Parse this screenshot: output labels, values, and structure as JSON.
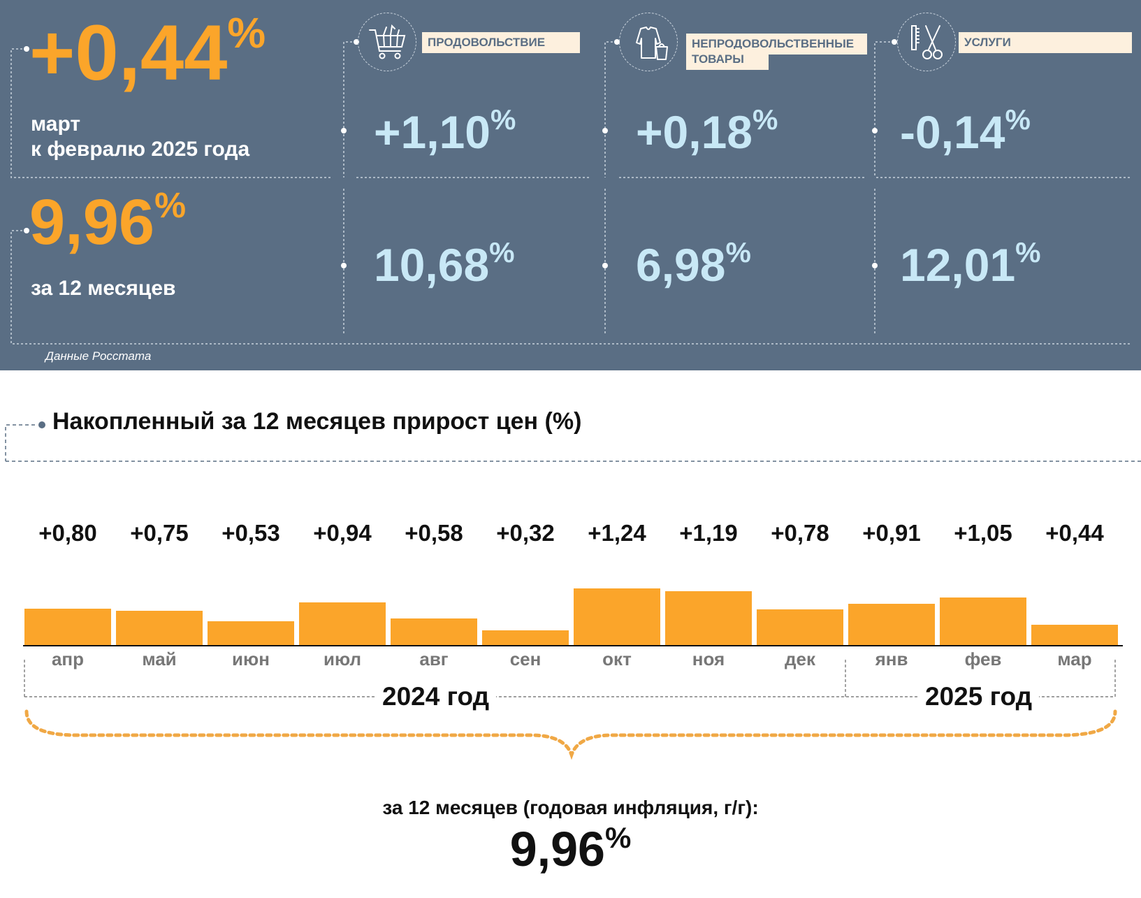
{
  "header": {
    "monthly_value": "+0,44",
    "monthly_label_line1": "март",
    "monthly_label_line2": "к февралю 2025 года",
    "annual_value": "9,96",
    "annual_label": "за 12 месяцев",
    "percent_sign": "%",
    "source": "Данные Росстата"
  },
  "categories": [
    {
      "label": "ПРОДОВОЛЬСТВИЕ",
      "icon": "shopping-cart-icon",
      "monthly": "+1,10",
      "annual": "10,68"
    },
    {
      "label_line1": "НЕПРОДОВОЛЬСТВЕННЫЕ",
      "label_line2": "ТОВАРЫ",
      "icon": "clothes-icon",
      "monthly": "+0,18",
      "annual": "6,98"
    },
    {
      "label": "УСЛУГИ",
      "icon": "scissors-comb-icon",
      "monthly": "-0,14",
      "annual": "12,01"
    }
  ],
  "colors": {
    "panel": "#5a6e84",
    "accent": "#fba52a",
    "light_blue": "#c8e8f6",
    "label_bg": "#fdf0de"
  },
  "chart_data": {
    "type": "bar",
    "title": "Накопленный за 12 месяцев прирост цен (%)",
    "categories": [
      "апр",
      "май",
      "июн",
      "июл",
      "авг",
      "сен",
      "окт",
      "ноя",
      "дек",
      "янв",
      "фев",
      "мар"
    ],
    "values": [
      0.8,
      0.75,
      0.53,
      0.94,
      0.58,
      0.32,
      1.24,
      1.19,
      0.78,
      0.91,
      1.05,
      0.44
    ],
    "value_labels": [
      "+0,80",
      "+0,75",
      "+0,53",
      "+0,94",
      "+0,58",
      "+0,32",
      "+1,24",
      "+1,19",
      "+0,78",
      "+0,91",
      "+1,05",
      "+0,44"
    ],
    "groups": [
      {
        "label": "2024 год",
        "months": 9
      },
      {
        "label": "2025 год",
        "months": 3
      }
    ],
    "summary_label": "за 12 месяцев (годовая инфляция, г/г):",
    "summary_value": "9,96"
  }
}
